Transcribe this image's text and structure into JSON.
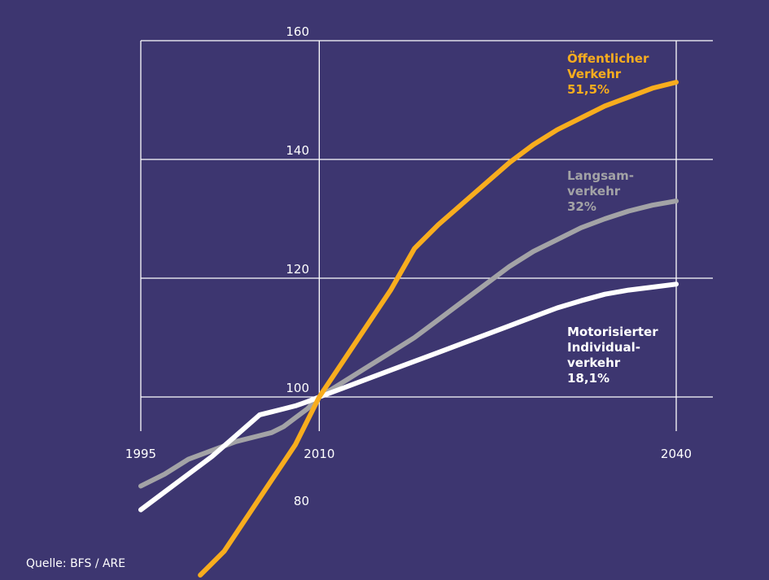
{
  "source": "Quelle: BFS / ARE",
  "chart_data": {
    "type": "line",
    "xlim": [
      1995,
      2040
    ],
    "ylim": [
      77,
      161
    ],
    "x_ticks": [
      1995,
      2010,
      2040
    ],
    "y_ticks": [
      80,
      100,
      120,
      140,
      160
    ],
    "grid": true,
    "series": [
      {
        "key": "oev",
        "label_lines": [
          "Öffentlicher",
          "Verkehr",
          "51,5%"
        ],
        "color": "#f8ad1e",
        "x": [
          2000,
          2002,
          2004,
          2005,
          2006,
          2007,
          2008,
          2009,
          2010,
          2012,
          2014,
          2016,
          2018,
          2020,
          2022,
          2024,
          2026,
          2028,
          2030,
          2032,
          2034,
          2036,
          2038,
          2040
        ],
        "y": [
          70,
          74,
          80,
          83,
          86,
          89,
          92,
          96,
          100,
          106,
          112,
          118,
          125,
          129,
          132.5,
          136,
          139.5,
          142.5,
          145,
          147,
          149,
          150.5,
          152,
          153
        ]
      },
      {
        "key": "lv",
        "label_lines": [
          "Langsam-",
          "verkehr",
          "32%"
        ],
        "color": "#a3a3a6",
        "x": [
          1995,
          1997,
          1999,
          2001,
          2003,
          2005,
          2006,
          2007,
          2008,
          2009,
          2010,
          2012,
          2014,
          2016,
          2018,
          2020,
          2022,
          2024,
          2026,
          2028,
          2030,
          2032,
          2034,
          2036,
          2038,
          2040
        ],
        "y": [
          85,
          87,
          89.5,
          91,
          92.5,
          93.5,
          94,
          95,
          96.5,
          98,
          100,
          102.5,
          105,
          107.5,
          110,
          113,
          116,
          119,
          122,
          124.5,
          126.5,
          128.5,
          130,
          131.3,
          132.3,
          133
        ]
      },
      {
        "key": "miv",
        "label_lines": [
          "Motorisierter",
          "Individual-",
          "verkehr",
          "18,1%"
        ],
        "color": "#ffffff",
        "x": [
          1995,
          1997,
          1999,
          2001,
          2003,
          2005,
          2006,
          2007,
          2008,
          2009,
          2010,
          2012,
          2014,
          2016,
          2018,
          2020,
          2022,
          2024,
          2026,
          2028,
          2030,
          2032,
          2034,
          2036,
          2038,
          2040
        ],
        "y": [
          81,
          84,
          87,
          90,
          93.5,
          97,
          97.5,
          98,
          98.5,
          99.2,
          100,
          101.5,
          103,
          104.5,
          106,
          107.5,
          109,
          110.5,
          112,
          113.5,
          115,
          116.2,
          117.3,
          118,
          118.5,
          119
        ]
      }
    ]
  }
}
